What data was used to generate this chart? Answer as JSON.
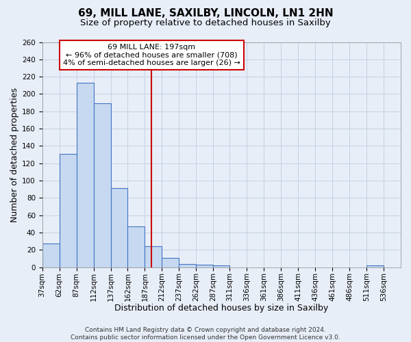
{
  "title": "69, MILL LANE, SAXILBY, LINCOLN, LN1 2HN",
  "subtitle": "Size of property relative to detached houses in Saxilby",
  "xlabel": "Distribution of detached houses by size in Saxilby",
  "ylabel": "Number of detached properties",
  "footer_line1": "Contains HM Land Registry data © Crown copyright and database right 2024.",
  "footer_line2": "Contains public sector information licensed under the Open Government Licence v3.0.",
  "bin_labels": [
    "37sqm",
    "62sqm",
    "87sqm",
    "112sqm",
    "137sqm",
    "162sqm",
    "187sqm",
    "212sqm",
    "237sqm",
    "262sqm",
    "287sqm",
    "311sqm",
    "336sqm",
    "361sqm",
    "386sqm",
    "411sqm",
    "436sqm",
    "461sqm",
    "486sqm",
    "511sqm",
    "536sqm"
  ],
  "bin_values": [
    27,
    131,
    213,
    189,
    91,
    47,
    24,
    11,
    4,
    3,
    2,
    0,
    0,
    0,
    0,
    0,
    0,
    0,
    0,
    2,
    0
  ],
  "bin_edges": [
    37,
    62,
    87,
    112,
    137,
    162,
    187,
    212,
    237,
    262,
    287,
    311,
    336,
    361,
    386,
    411,
    436,
    461,
    486,
    511,
    536,
    561
  ],
  "property_size": 197,
  "vline_color": "#cc0000",
  "bar_facecolor": "#c6d9f0",
  "bar_edgecolor": "#4472c4",
  "annotation_line1": "69 MILL LANE: 197sqm",
  "annotation_line2": "← 96% of detached houses are smaller (708)",
  "annotation_line3": "4% of semi-detached houses are larger (26) →",
  "annotation_box_edgecolor": "#cc0000",
  "ylim": [
    0,
    260
  ],
  "yticks": [
    0,
    20,
    40,
    60,
    80,
    100,
    120,
    140,
    160,
    180,
    200,
    220,
    240,
    260
  ],
  "background_color": "#e8eef8",
  "grid_color": "#c0cce0",
  "title_fontsize": 11,
  "subtitle_fontsize": 9.5,
  "axis_label_fontsize": 9,
  "tick_fontsize": 7.5,
  "annotation_fontsize": 8,
  "footer_fontsize": 6.5
}
